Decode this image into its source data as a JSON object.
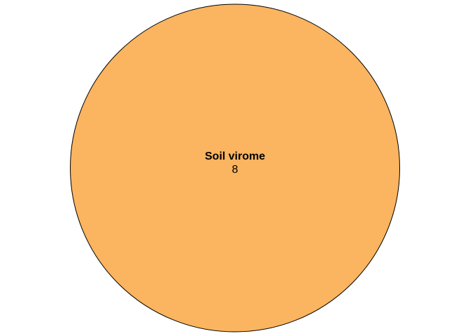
{
  "diagram": {
    "type": "venn",
    "sets": [
      {
        "name": "Soil virome",
        "count": "8",
        "fill_color": "#FBB45F",
        "stroke_color": "#000000"
      }
    ]
  }
}
